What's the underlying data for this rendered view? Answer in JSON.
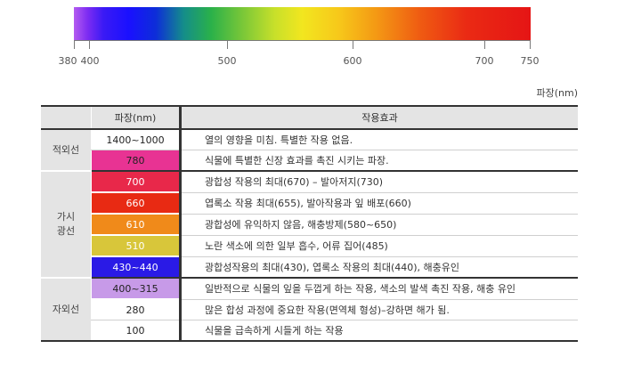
{
  "spectrum": {
    "ticks": [
      "380",
      "400",
      "500",
      "600",
      "700",
      "750"
    ],
    "unit": "파장(nm)"
  },
  "table": {
    "headers": {
      "wavelength": "파장(nm)",
      "effect": "작용효과"
    },
    "groups": [
      {
        "category": "적외선",
        "rows": [
          {
            "wavelength": "1400~1000",
            "color": "#ffffff",
            "effect": "열의 영향을 미침. 특별한 작용 없음."
          },
          {
            "wavelength": "780",
            "color": "#e83393",
            "effect": "식물에 특별한 신장 효과를 촉진 시키는 파장."
          }
        ]
      },
      {
        "category": "가시광선",
        "category_lines": [
          "가시",
          "광선"
        ],
        "rows": [
          {
            "wavelength": "700",
            "color": "#e8284a",
            "effect": "광합성 작용의 최대(670) – 발아저지(730)"
          },
          {
            "wavelength": "660",
            "color": "#e82a13",
            "effect": "엽록소 작용 최대(655), 발아작용과 잎 배포(660)"
          },
          {
            "wavelength": "610",
            "color": "#f08a1a",
            "effect": "광합성에 유익하지 않음, 해충방제(580~650)"
          },
          {
            "wavelength": "510",
            "color": "#d8c63a",
            "effect": "노란 색소에 의한 일부 흡수, 어류 집어(485)"
          },
          {
            "wavelength": "430~440",
            "color": "#2a1ae6",
            "effect": "광합성작용의 최대(430), 엽록소 작용의 최대(440), 해충유인"
          }
        ]
      },
      {
        "category": "자외선",
        "rows": [
          {
            "wavelength": "400~315",
            "color": "#c79ae8",
            "effect": "일반적으로 식물의 잎을 두껍게 하는 작용, 색소의 발색 촉진 작용, 해충 유인"
          },
          {
            "wavelength": "280",
            "color": "#ffffff",
            "effect": "많은 합성 과정에 중요한 작용(면역체 형성)–강하면 해가 됨."
          },
          {
            "wavelength": "100",
            "color": "#ffffff",
            "effect": "식물을 급속하게 시들게 하는 작용"
          }
        ]
      }
    ]
  }
}
